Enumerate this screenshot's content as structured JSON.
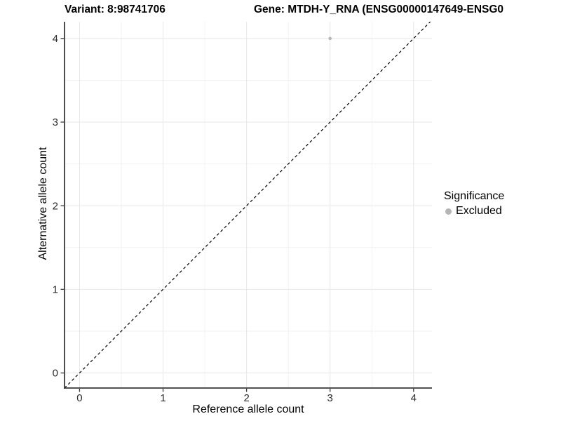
{
  "chart_data": {
    "type": "scatter",
    "titles": {
      "variant": "Variant: 8:98741706",
      "gene": "Gene: MTDH-Y_RNA (ENSG00000147649-ENSG0"
    },
    "xlabel": "Reference allele count",
    "ylabel": "Alternative allele count",
    "x_ticks": [
      0,
      1,
      2,
      3,
      4
    ],
    "y_ticks": [
      0,
      1,
      2,
      3,
      4
    ],
    "x_minor": [
      0.5,
      1.5,
      2.5,
      3.5
    ],
    "y_minor": [
      0.5,
      1.5,
      2.5,
      3.5
    ],
    "x_domain": [
      -0.18,
      4.22
    ],
    "y_domain": [
      -0.18,
      4.2
    ],
    "grid": "major+minor",
    "points": [
      {
        "x": 3,
        "y": 4,
        "significance": "Excluded"
      }
    ],
    "reference_line": {
      "slope": 1,
      "intercept": 0,
      "style": "dashed",
      "color": "#000000"
    },
    "legend": {
      "title": "Significance",
      "position": "right",
      "items": [
        {
          "label": "Excluded",
          "color": "#b5b5b5",
          "marker": "circle"
        }
      ]
    },
    "colors": {
      "background": "#ffffff",
      "grid_major": "#e7e7e7",
      "grid_minor": "#f2f2f2",
      "axis_line": "#3a3a3a",
      "tick_text": "#2b2b2b",
      "point": "#b5b5b5"
    }
  }
}
